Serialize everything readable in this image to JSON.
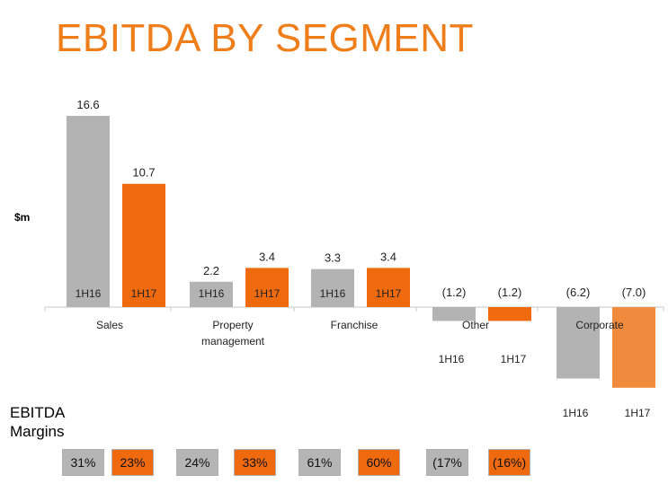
{
  "title": "EBITDA BY SEGMENT",
  "colors": {
    "title": "#ef7d1a",
    "gray": "#b3b3b3",
    "orange": "#ee6a0d",
    "orange_light": "#f08a3c"
  },
  "chart_data": {
    "type": "bar",
    "title": "EBITDA BY SEGMENT",
    "ylabel": "$m",
    "xlabel": "",
    "ylim": [
      -7.0,
      16.6
    ],
    "categories": [
      "Sales",
      "Property management",
      "Franchise",
      "Other",
      "Corporate"
    ],
    "category_lines": [
      [
        "Sales"
      ],
      [
        "Property",
        "management"
      ],
      [
        "Franchise"
      ],
      [
        "Other"
      ],
      [
        "Corporate"
      ]
    ],
    "series": [
      {
        "name": "1H16",
        "values": [
          16.6,
          2.2,
          3.3,
          -1.2,
          -6.2
        ]
      },
      {
        "name": "1H17",
        "values": [
          10.7,
          3.4,
          3.4,
          -1.2,
          -7.0
        ]
      }
    ],
    "value_labels": [
      [
        "16.6",
        "2.2",
        "3.3",
        "(1.2)",
        "(6.2)"
      ],
      [
        "10.7",
        "3.4",
        "3.4",
        "(1.2)",
        "(7.0)"
      ]
    ],
    "grid": false,
    "legend": "none"
  },
  "margins": {
    "title_lines": [
      "EBITDA",
      "Margins"
    ],
    "values": [
      "31%",
      "23%",
      "24%",
      "33%",
      "61%",
      "60%",
      "(17%",
      "(16%)"
    ]
  }
}
